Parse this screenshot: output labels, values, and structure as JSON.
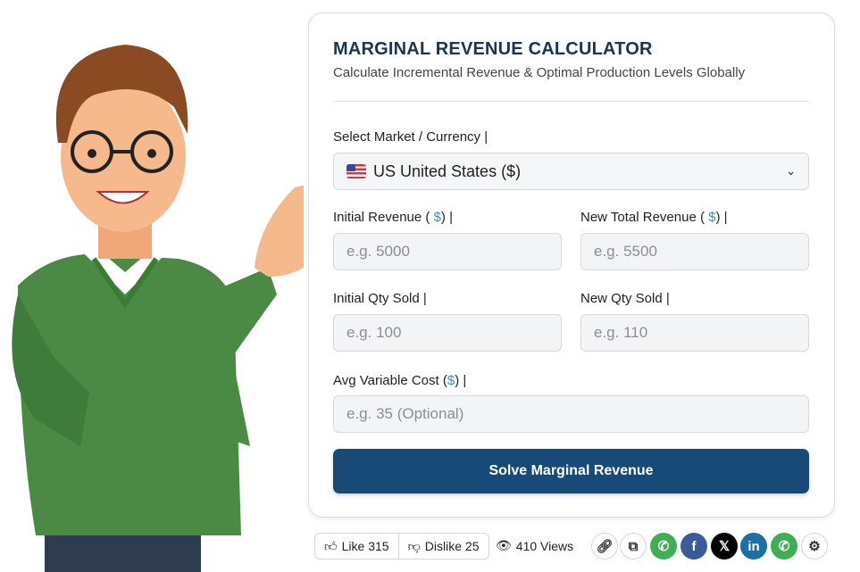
{
  "calculator": {
    "title": "MARGINAL REVENUE CALCULATOR",
    "subtitle": "Calculate Incremental Revenue & Optimal Production Levels Globally",
    "market_label": "Select Market / Currency |",
    "market_value": "US United States ($)",
    "currency_symbol": "$",
    "fields": [
      {
        "label_pre": "Initial Revenue ( ",
        "label_post": ") |",
        "placeholder": "e.g. 5000"
      },
      {
        "label_pre": "New Total Revenue ( ",
        "label_post": ") |",
        "placeholder": "e.g. 5500"
      },
      {
        "label": "Initial Qty Sold |",
        "placeholder": "e.g. 100"
      },
      {
        "label": "New Qty Sold |",
        "placeholder": "e.g. 110"
      },
      {
        "label_pre": "Avg Variable Cost (",
        "label_post": ") |",
        "placeholder": "e.g. 35 (Optional)"
      }
    ],
    "solve_label": "Solve Marginal Revenue",
    "accent": "#184a78"
  },
  "footer": {
    "like": "Like 315",
    "dislike": "Dislike 25",
    "views": "410 Views",
    "share_icons": [
      "link-icon",
      "copy-icon",
      "whatsapp-icon",
      "facebook-icon",
      "x-icon",
      "linkedin-icon",
      "whatsapp-icon",
      "gear-icon"
    ]
  }
}
